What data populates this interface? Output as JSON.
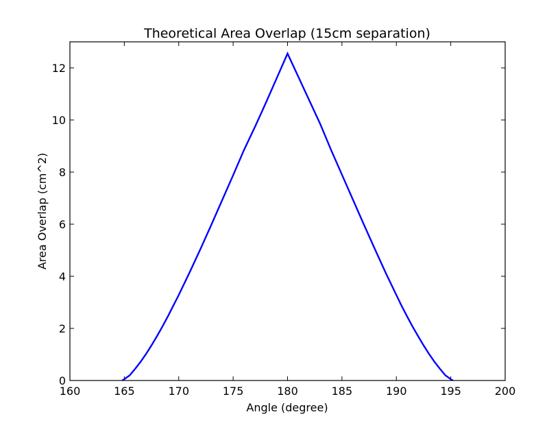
{
  "chart_data": {
    "type": "line",
    "title": "Theoretical Area Overlap (15cm separation)",
    "xlabel": "Angle (degree)",
    "ylabel": "Area Overlap (cm^2)",
    "xlim": [
      160,
      200
    ],
    "ylim": [
      0,
      13
    ],
    "xticks": [
      "160",
      "165",
      "170",
      "175",
      "180",
      "185",
      "190",
      "195",
      "200"
    ],
    "yticks": [
      "0",
      "2",
      "4",
      "6",
      "8",
      "10",
      "12"
    ],
    "grid": false,
    "legend": "none",
    "series": [
      {
        "color": "#0000ff",
        "x": [
          164.8,
          165,
          165.5,
          166,
          166.5,
          167,
          167.5,
          168,
          168.5,
          169,
          169.5,
          170,
          171,
          172,
          173,
          174,
          175,
          176,
          177,
          178,
          179,
          180,
          181,
          182,
          183,
          184,
          185,
          186,
          187,
          188,
          189,
          190,
          190.5,
          191,
          191.5,
          192,
          192.5,
          193,
          193.5,
          194,
          194.5,
          195,
          195.2
        ],
        "y": [
          0,
          0.05,
          0.2,
          0.45,
          0.72,
          1.02,
          1.35,
          1.7,
          2.07,
          2.46,
          2.87,
          3.28,
          4.15,
          5.05,
          5.98,
          6.93,
          7.88,
          8.85,
          9.73,
          10.65,
          11.6,
          12.55,
          11.65,
          10.75,
          9.85,
          8.85,
          7.9,
          6.95,
          6.0,
          5.07,
          4.15,
          3.28,
          2.85,
          2.45,
          2.06,
          1.7,
          1.35,
          1.02,
          0.72,
          0.45,
          0.2,
          0.05,
          0
        ]
      }
    ]
  }
}
